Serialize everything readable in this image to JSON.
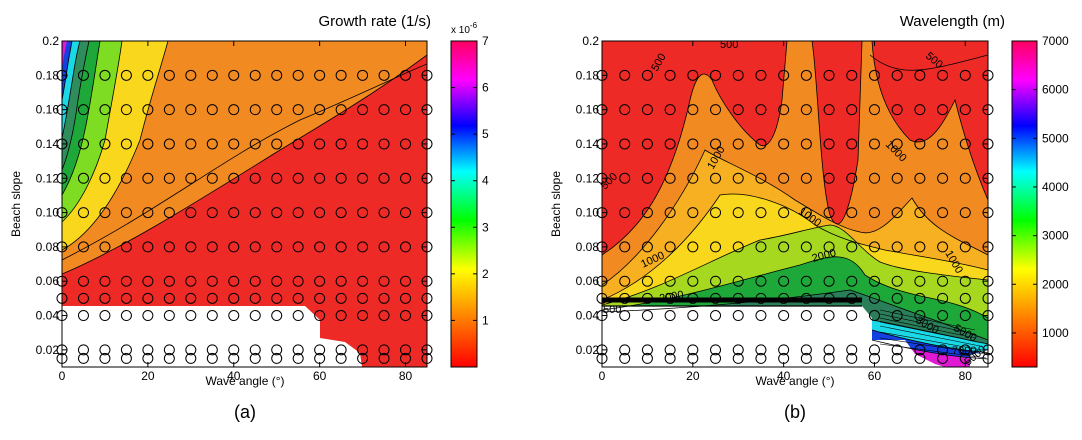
{
  "panels": [
    {
      "label": "(a)",
      "chart_data": {
        "type": "heatmap",
        "subtype": "filled-contour",
        "title": "Growth rate (1/s)",
        "xlabel": "Wave angle (°)",
        "ylabel": "Beach slope",
        "xlim": [
          0,
          85
        ],
        "ylim": [
          0.01,
          0.2
        ],
        "xticks": [
          0,
          20,
          40,
          60,
          80
        ],
        "yticks": [
          0.02,
          0.04,
          0.06,
          0.08,
          0.1,
          0.12,
          0.14,
          0.16,
          0.18,
          0.2
        ],
        "ytick_labels": [
          "0.02",
          "0.04",
          "0.06",
          "0.08",
          "0.10",
          "0.12",
          "0.14",
          "0.16",
          "0.18",
          "0.2"
        ],
        "colorbar": {
          "range": [
            0,
            7e-06
          ],
          "ticks": [
            1,
            2,
            3,
            4,
            5,
            6,
            7
          ],
          "exponent_label": "x 10",
          "exponent": "-6",
          "colormap": "reversed hsv: red (low) to magenta (high)"
        },
        "sample_x": [
          0,
          5,
          10,
          15,
          20,
          25,
          30,
          35,
          40,
          45,
          50,
          55,
          60,
          65,
          70,
          75,
          80,
          85
        ],
        "sample_y": [
          0.015,
          0.02,
          0.04,
          0.05,
          0.06,
          0.08,
          0.1,
          0.12,
          0.14,
          0.16,
          0.18
        ],
        "approx_values_at_x0": [
          {
            "y": 0.065,
            "v": 0.2
          },
          {
            "y": 0.1,
            "v": 2.0
          },
          {
            "y": 0.14,
            "v": 3.6
          },
          {
            "y": 0.18,
            "v": 6.2
          },
          {
            "y": 0.2,
            "v": 7.0
          }
        ],
        "no_data_region": "slope < 0.045 for angle < 60°"
      }
    },
    {
      "label": "(b)",
      "chart_data": {
        "type": "heatmap",
        "subtype": "filled-contour",
        "title": "Wavelength (m)",
        "xlabel": "Wave angle (°)",
        "ylabel": "Beach slope",
        "xlim": [
          0,
          85
        ],
        "ylim": [
          0.01,
          0.2
        ],
        "xticks": [
          0,
          20,
          40,
          60,
          80
        ],
        "yticks": [
          0.02,
          0.04,
          0.06,
          0.08,
          0.1,
          0.12,
          0.14,
          0.16,
          0.18,
          0.2
        ],
        "ytick_labels": [
          "0.02",
          "0.04",
          "0.06",
          "0.08",
          "0.10",
          "0.12",
          "0.14",
          "0.16",
          "0.18",
          "0.2"
        ],
        "colorbar": {
          "range": [
            300,
            7000
          ],
          "ticks": [
            1000,
            2000,
            3000,
            4000,
            5000,
            6000,
            7000
          ],
          "colormap": "reversed hsv: red (low) to magenta (high)"
        },
        "contour_labels": [
          "500",
          "500",
          "500",
          "1000",
          "1000",
          "1000",
          "1000",
          "2000",
          "2000",
          "1000",
          "500",
          "500",
          "3000",
          "5000",
          "7000",
          "5000"
        ],
        "sample_x": [
          0,
          5,
          10,
          15,
          20,
          25,
          30,
          35,
          40,
          45,
          50,
          55,
          60,
          65,
          70,
          75,
          80,
          85
        ],
        "sample_y": [
          0.015,
          0.02,
          0.04,
          0.05,
          0.06,
          0.08,
          0.1,
          0.12,
          0.14,
          0.16,
          0.18
        ]
      }
    }
  ],
  "colors": {
    "red": "#ee2a26",
    "orange": "#f28a22",
    "yellow": "#f9d71c",
    "green": "#1fa83a",
    "cyan": "#1ad8e6",
    "blue": "#1440e0",
    "magenta": "#e01ad4"
  }
}
